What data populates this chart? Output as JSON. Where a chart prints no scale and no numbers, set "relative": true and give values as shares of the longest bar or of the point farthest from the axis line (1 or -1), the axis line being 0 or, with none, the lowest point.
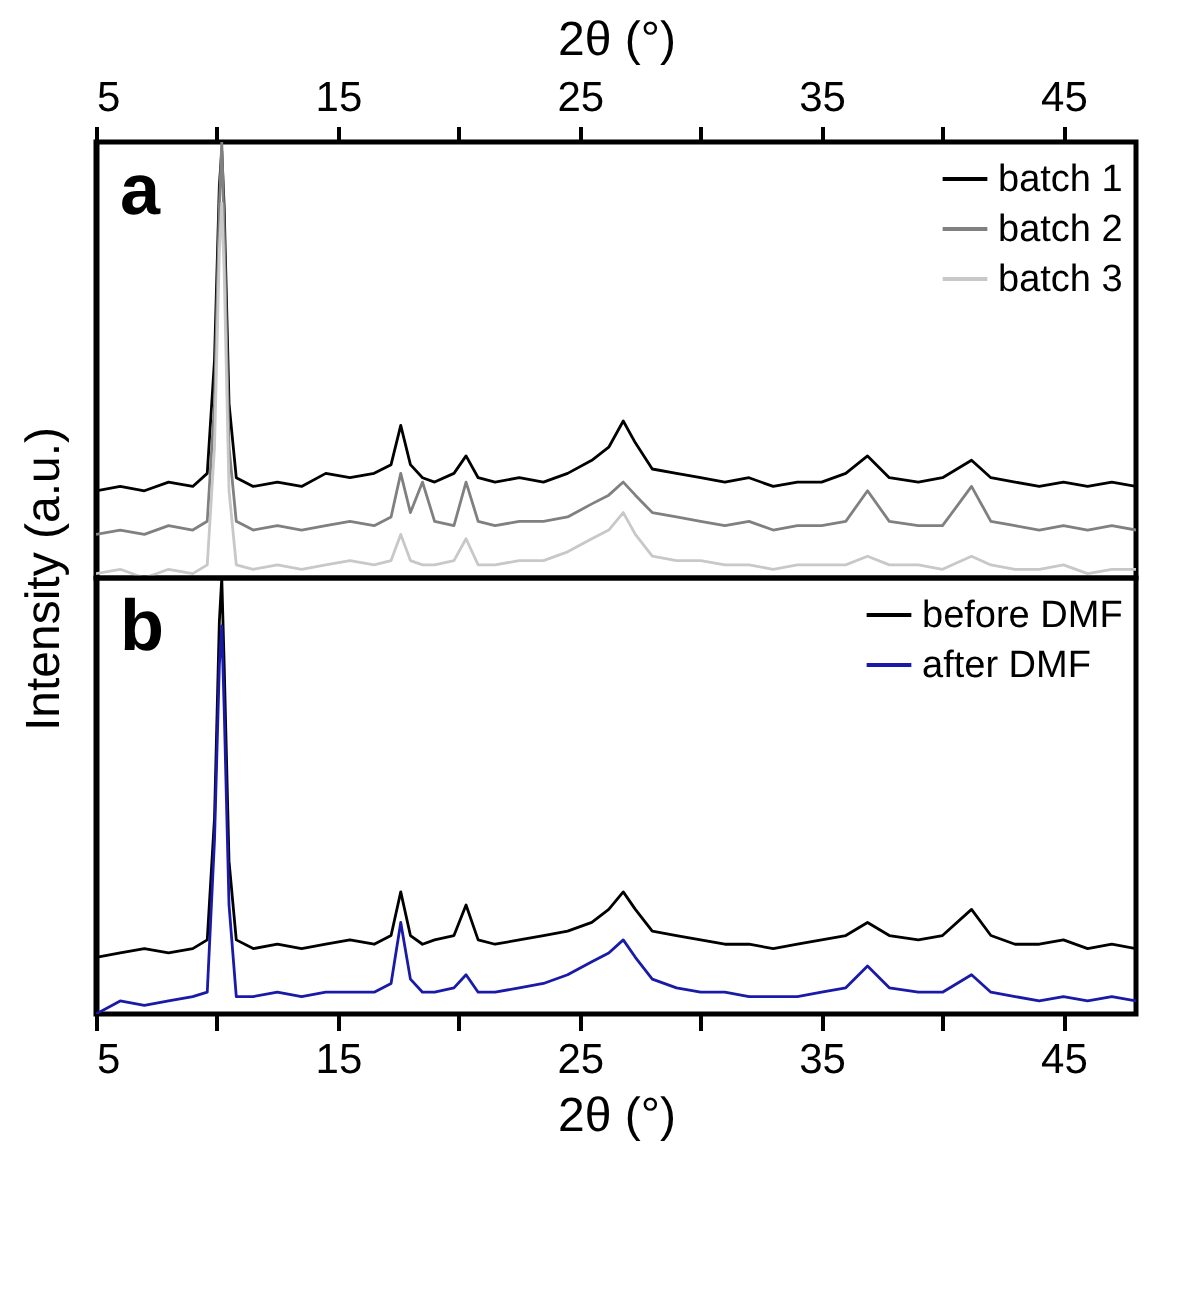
{
  "chart_data": [
    {
      "type": "line",
      "relative": true,
      "ylabel": "Intensity (a.u.)",
      "xlabel": "2θ (°)",
      "xlim": [
        5,
        48
      ],
      "xticks": [
        5,
        {
          "value": 10,
          "label": null
        },
        15,
        {
          "value": 20,
          "label": null
        },
        25,
        {
          "value": 30,
          "label": null
        },
        35,
        {
          "value": 40,
          "label": null
        },
        45
      ],
      "tick_labels": "x",
      "legend": "top right",
      "annotations": [
        "a"
      ],
      "x": [
        5,
        6,
        7,
        8,
        9,
        9.6,
        9.9,
        10.1,
        10.2,
        10.3,
        10.5,
        10.8,
        11.5,
        12.5,
        13.5,
        14.5,
        15.5,
        16.5,
        17.2,
        17.6,
        18,
        18.5,
        19,
        19.8,
        20.3,
        20.8,
        21.5,
        22.5,
        23.5,
        24.5,
        25.5,
        26.2,
        26.8,
        27.3,
        28,
        29,
        30,
        31,
        32,
        33,
        34,
        35,
        36,
        36.9,
        37.8,
        39,
        40,
        41.2,
        42,
        43,
        44,
        45,
        46,
        47,
        48
      ],
      "series": [
        {
          "name": "batch 1",
          "color": "#000000",
          "values": [
            0.2,
            0.21,
            0.2,
            0.22,
            0.21,
            0.24,
            0.5,
            0.9,
            0.98,
            0.85,
            0.4,
            0.23,
            0.21,
            0.22,
            0.21,
            0.24,
            0.23,
            0.24,
            0.26,
            0.35,
            0.26,
            0.23,
            0.22,
            0.24,
            0.28,
            0.23,
            0.22,
            0.23,
            0.22,
            0.24,
            0.27,
            0.3,
            0.36,
            0.31,
            0.25,
            0.24,
            0.23,
            0.22,
            0.23,
            0.21,
            0.22,
            0.22,
            0.24,
            0.28,
            0.23,
            0.22,
            0.23,
            0.27,
            0.23,
            0.22,
            0.21,
            0.22,
            0.21,
            0.22,
            0.21
          ]
        },
        {
          "name": "batch 2",
          "color": "#808080",
          "values": [
            0.1,
            0.11,
            0.1,
            0.12,
            0.11,
            0.13,
            0.4,
            0.85,
            1.0,
            0.8,
            0.3,
            0.13,
            0.11,
            0.12,
            0.11,
            0.12,
            0.13,
            0.12,
            0.14,
            0.24,
            0.15,
            0.22,
            0.13,
            0.12,
            0.22,
            0.13,
            0.12,
            0.13,
            0.13,
            0.14,
            0.17,
            0.19,
            0.22,
            0.19,
            0.15,
            0.14,
            0.13,
            0.12,
            0.13,
            0.11,
            0.12,
            0.12,
            0.13,
            0.2,
            0.13,
            0.12,
            0.12,
            0.21,
            0.13,
            0.12,
            0.11,
            0.12,
            0.11,
            0.12,
            0.11
          ]
        },
        {
          "name": "batch 3",
          "color": "#c8c8c8",
          "values": [
            0.01,
            0.02,
            0.0,
            0.02,
            0.01,
            0.03,
            0.3,
            0.75,
            0.86,
            0.7,
            0.2,
            0.03,
            0.02,
            0.03,
            0.02,
            0.03,
            0.04,
            0.03,
            0.04,
            0.1,
            0.04,
            0.03,
            0.03,
            0.04,
            0.09,
            0.03,
            0.03,
            0.04,
            0.04,
            0.06,
            0.09,
            0.11,
            0.15,
            0.1,
            0.05,
            0.04,
            0.04,
            0.03,
            0.03,
            0.02,
            0.03,
            0.03,
            0.03,
            0.05,
            0.03,
            0.03,
            0.02,
            0.05,
            0.03,
            0.02,
            0.02,
            0.03,
            0.01,
            0.02,
            0.02
          ]
        }
      ]
    },
    {
      "type": "line",
      "relative": true,
      "xlabel": "2θ (°)",
      "xlim": [
        5,
        48
      ],
      "xticks": [
        5,
        {
          "value": 10,
          "label": null
        },
        15,
        {
          "value": 20,
          "label": null
        },
        25,
        {
          "value": 30,
          "label": null
        },
        35,
        {
          "value": 40,
          "label": null
        },
        45
      ],
      "tick_labels": "x",
      "legend": "top right",
      "annotations": [
        "b"
      ],
      "x": [
        5,
        6,
        7,
        8,
        9,
        9.6,
        9.9,
        10.1,
        10.2,
        10.3,
        10.5,
        10.8,
        11.5,
        12.5,
        13.5,
        14.5,
        15.5,
        16.5,
        17.2,
        17.6,
        18,
        18.5,
        19,
        19.8,
        20.3,
        20.8,
        21.5,
        22.5,
        23.5,
        24.5,
        25.5,
        26.2,
        26.8,
        27.3,
        28,
        29,
        30,
        31,
        32,
        33,
        34,
        35,
        36,
        36.9,
        37.8,
        39,
        40,
        41.2,
        42,
        43,
        44,
        45,
        46,
        47,
        48
      ],
      "series": [
        {
          "name": "before DMF",
          "color": "#000000",
          "values": [
            0.13,
            0.14,
            0.15,
            0.14,
            0.15,
            0.17,
            0.45,
            0.9,
            1.0,
            0.8,
            0.35,
            0.17,
            0.15,
            0.16,
            0.15,
            0.16,
            0.17,
            0.16,
            0.18,
            0.28,
            0.18,
            0.16,
            0.17,
            0.18,
            0.25,
            0.17,
            0.16,
            0.17,
            0.18,
            0.19,
            0.21,
            0.24,
            0.28,
            0.24,
            0.19,
            0.18,
            0.17,
            0.16,
            0.16,
            0.15,
            0.16,
            0.17,
            0.18,
            0.21,
            0.18,
            0.17,
            0.18,
            0.24,
            0.18,
            0.16,
            0.16,
            0.17,
            0.15,
            0.16,
            0.15
          ]
        },
        {
          "name": "after DMF",
          "color": "#1a1aa8",
          "values": [
            0.0,
            0.03,
            0.02,
            0.03,
            0.04,
            0.05,
            0.4,
            0.8,
            0.89,
            0.7,
            0.25,
            0.04,
            0.04,
            0.05,
            0.04,
            0.05,
            0.05,
            0.05,
            0.07,
            0.21,
            0.08,
            0.05,
            0.05,
            0.06,
            0.09,
            0.05,
            0.05,
            0.06,
            0.07,
            0.09,
            0.12,
            0.14,
            0.17,
            0.13,
            0.08,
            0.06,
            0.05,
            0.05,
            0.04,
            0.04,
            0.04,
            0.05,
            0.06,
            0.11,
            0.06,
            0.05,
            0.05,
            0.09,
            0.05,
            0.04,
            0.03,
            0.04,
            0.03,
            0.04,
            0.03
          ]
        }
      ]
    }
  ]
}
